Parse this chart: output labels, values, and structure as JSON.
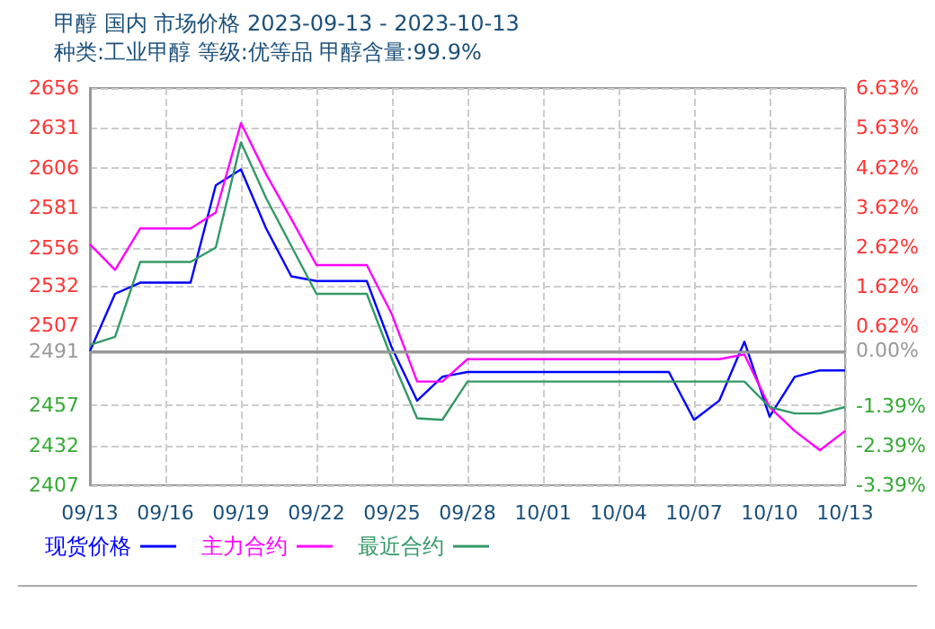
{
  "chart_data": {
    "type": "line",
    "title": "甲醇 国内 市场价格 2023-09-13 - 2023-10-13",
    "subtitle": "种类:工业甲醇 等级:优等品 甲醇含量:99.9%",
    "x": [
      "2023-09-13",
      "2023-09-14",
      "2023-09-15",
      "2023-09-16",
      "2023-09-17",
      "2023-09-18",
      "2023-09-19",
      "2023-09-20",
      "2023-09-21",
      "2023-09-22",
      "2023-09-23",
      "2023-09-24",
      "2023-09-25",
      "2023-09-26",
      "2023-09-27",
      "2023-09-28",
      "2023-09-29",
      "2023-09-30",
      "2023-10-01",
      "2023-10-02",
      "2023-10-03",
      "2023-10-04",
      "2023-10-05",
      "2023-10-06",
      "2023-10-07",
      "2023-10-08",
      "2023-10-09",
      "2023-10-10",
      "2023-10-11",
      "2023-10-12",
      "2023-10-13"
    ],
    "series": [
      {
        "name": "现货价格",
        "color": "#0000ff",
        "values": [
          2491,
          2527,
          2534,
          2534,
          2534,
          2595,
          2605,
          2568,
          2538,
          2535,
          2535,
          2535,
          2493,
          2460,
          2475,
          2478,
          2478,
          2478,
          2478,
          2478,
          2478,
          2478,
          2478,
          2478,
          2448,
          2460,
          2497,
          2450,
          2475,
          2479,
          2479
        ]
      },
      {
        "name": "主力合约",
        "color": "#ff00ff",
        "values": [
          2558,
          2542,
          2568,
          2568,
          2568,
          2578,
          2634,
          2602,
          2574,
          2545,
          2545,
          2545,
          2514,
          2472,
          2472,
          2486,
          2486,
          2486,
          2486,
          2486,
          2486,
          2486,
          2486,
          2486,
          2486,
          2486,
          2489,
          2456,
          2441,
          2429,
          2441
        ]
      },
      {
        "name": "最近合约",
        "color": "#339966",
        "values": [
          2495,
          2500,
          2547,
          2547,
          2547,
          2556,
          2622,
          2587,
          2557,
          2527,
          2527,
          2527,
          2486,
          2449,
          2448,
          2472,
          2472,
          2472,
          2472,
          2472,
          2472,
          2472,
          2472,
          2472,
          2472,
          2472,
          2472,
          2456,
          2452,
          2452,
          2456
        ]
      }
    ],
    "xlim": [
      "2023-09-13",
      "2023-10-13"
    ],
    "xticks": [
      {
        "value": "2023-09-13",
        "label": "09/13"
      },
      {
        "value": "2023-09-16",
        "label": "09/16"
      },
      {
        "value": "2023-09-19",
        "label": "09/19"
      },
      {
        "value": "2023-09-22",
        "label": "09/22"
      },
      {
        "value": "2023-09-25",
        "label": "09/25"
      },
      {
        "value": "2023-09-28",
        "label": "09/28"
      },
      {
        "value": "2023-10-01",
        "label": "10/01"
      },
      {
        "value": "2023-10-04",
        "label": "10/04"
      },
      {
        "value": "2023-10-07",
        "label": "10/07"
      },
      {
        "value": "2023-10-10",
        "label": "10/10"
      },
      {
        "value": "2023-10-13",
        "label": "10/13"
      }
    ],
    "ylim": [
      2407,
      2656
    ],
    "yticks": [
      2407,
      2432,
      2457,
      2491,
      2507,
      2532,
      2556,
      2581,
      2606,
      2631,
      2656
    ],
    "y2lim": [
      -3.39,
      6.63
    ],
    "y2ticks": [
      {
        "value": -3.39,
        "label": "-3.39%"
      },
      {
        "value": -2.39,
        "label": "-2.39%"
      },
      {
        "value": -1.39,
        "label": "-1.39%"
      },
      {
        "value": 0,
        "label": "0.00%"
      },
      {
        "value": 0.62,
        "label": "0.62%"
      },
      {
        "value": 1.62,
        "label": "1.62%"
      },
      {
        "value": 2.62,
        "label": "2.62%"
      },
      {
        "value": 3.62,
        "label": "3.62%"
      },
      {
        "value": 4.62,
        "label": "4.62%"
      },
      {
        "value": 5.63,
        "label": "5.63%"
      },
      {
        "value": 6.63,
        "label": "6.63%"
      }
    ],
    "ref_lines": [
      {
        "axis": "y",
        "value": 2491,
        "color": "#999999"
      }
    ],
    "grid": true,
    "legend": "bottom left",
    "marker": "none",
    "line_style": "solid"
  }
}
